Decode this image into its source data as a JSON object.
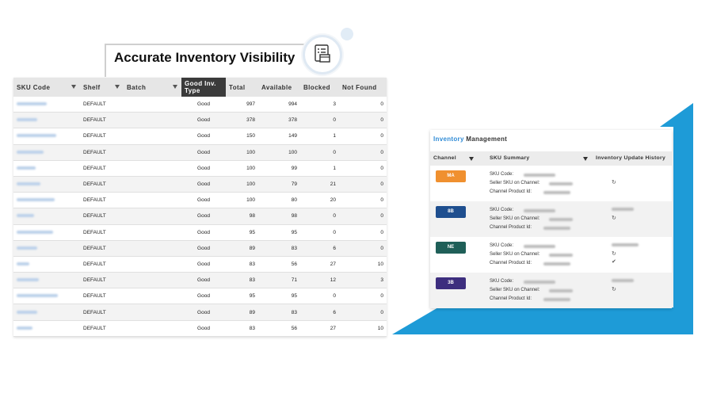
{
  "header": {
    "title": "Accurate Inventory Visibility",
    "icon": "inventory-checklist-icon"
  },
  "inventory_table": {
    "columns": [
      "SKU Code",
      "Shelf",
      "Batch",
      "Good Inv. Type",
      "Total",
      "Available",
      "Blocked",
      "Not Found"
    ],
    "rows": [
      {
        "shelf": "DEFAULT",
        "type": "Good",
        "total": "997",
        "available": "994",
        "blocked": "3",
        "not_found": "0"
      },
      {
        "shelf": "DEFAULT",
        "type": "Good",
        "total": "378",
        "available": "378",
        "blocked": "0",
        "not_found": "0"
      },
      {
        "shelf": "DEFAULT",
        "type": "Good",
        "total": "150",
        "available": "149",
        "blocked": "1",
        "not_found": "0"
      },
      {
        "shelf": "DEFAULT",
        "type": "Good",
        "total": "100",
        "available": "100",
        "blocked": "0",
        "not_found": "0"
      },
      {
        "shelf": "DEFAULT",
        "type": "Good",
        "total": "100",
        "available": "99",
        "blocked": "1",
        "not_found": "0"
      },
      {
        "shelf": "DEFAULT",
        "type": "Good",
        "total": "100",
        "available": "79",
        "blocked": "21",
        "not_found": "0"
      },
      {
        "shelf": "DEFAULT",
        "type": "Good",
        "total": "100",
        "available": "80",
        "blocked": "20",
        "not_found": "0"
      },
      {
        "shelf": "DEFAULT",
        "type": "Good",
        "total": "98",
        "available": "98",
        "blocked": "0",
        "not_found": "0"
      },
      {
        "shelf": "DEFAULT",
        "type": "Good",
        "total": "95",
        "available": "95",
        "blocked": "0",
        "not_found": "0"
      },
      {
        "shelf": "DEFAULT",
        "type": "Good",
        "total": "89",
        "available": "83",
        "blocked": "6",
        "not_found": "0"
      },
      {
        "shelf": "DEFAULT",
        "type": "Good",
        "total": "83",
        "available": "56",
        "blocked": "27",
        "not_found": "10"
      },
      {
        "shelf": "DEFAULT",
        "type": "Good",
        "total": "83",
        "available": "71",
        "blocked": "12",
        "not_found": "3"
      },
      {
        "shelf": "DEFAULT",
        "type": "Good",
        "total": "95",
        "available": "95",
        "blocked": "0",
        "not_found": "0"
      },
      {
        "shelf": "DEFAULT",
        "type": "Good",
        "total": "89",
        "available": "83",
        "blocked": "6",
        "not_found": "0"
      },
      {
        "shelf": "DEFAULT",
        "type": "Good",
        "total": "83",
        "available": "56",
        "blocked": "27",
        "not_found": "10"
      }
    ]
  },
  "management": {
    "title_accent": "Inventory",
    "title_rest": " Management",
    "columns": [
      "Channel",
      "SKU Summary",
      "Inventory Update History"
    ],
    "labels": {
      "sku_code": "SKU Code:",
      "seller_sku": "Seller SKU on Channel:",
      "channel_product": "Channel Product Id:"
    },
    "rows": [
      {
        "badge": "MA",
        "color": "#f0902f",
        "history": [
          "refresh-icon"
        ]
      },
      {
        "badge": "8B",
        "color": "#1f4f8f",
        "history": [
          "refresh-icon"
        ]
      },
      {
        "badge": "NE",
        "color": "#1f5f58",
        "history": [
          "refresh-icon",
          "check-icon"
        ]
      },
      {
        "badge": "3B",
        "color": "#3d2e7e",
        "history": [
          "refresh-icon"
        ]
      }
    ]
  },
  "colors": {
    "accent_blue": "#1e9bd7",
    "link_blue": "#2f8bd6",
    "header_dark": "#3b3b3b"
  }
}
